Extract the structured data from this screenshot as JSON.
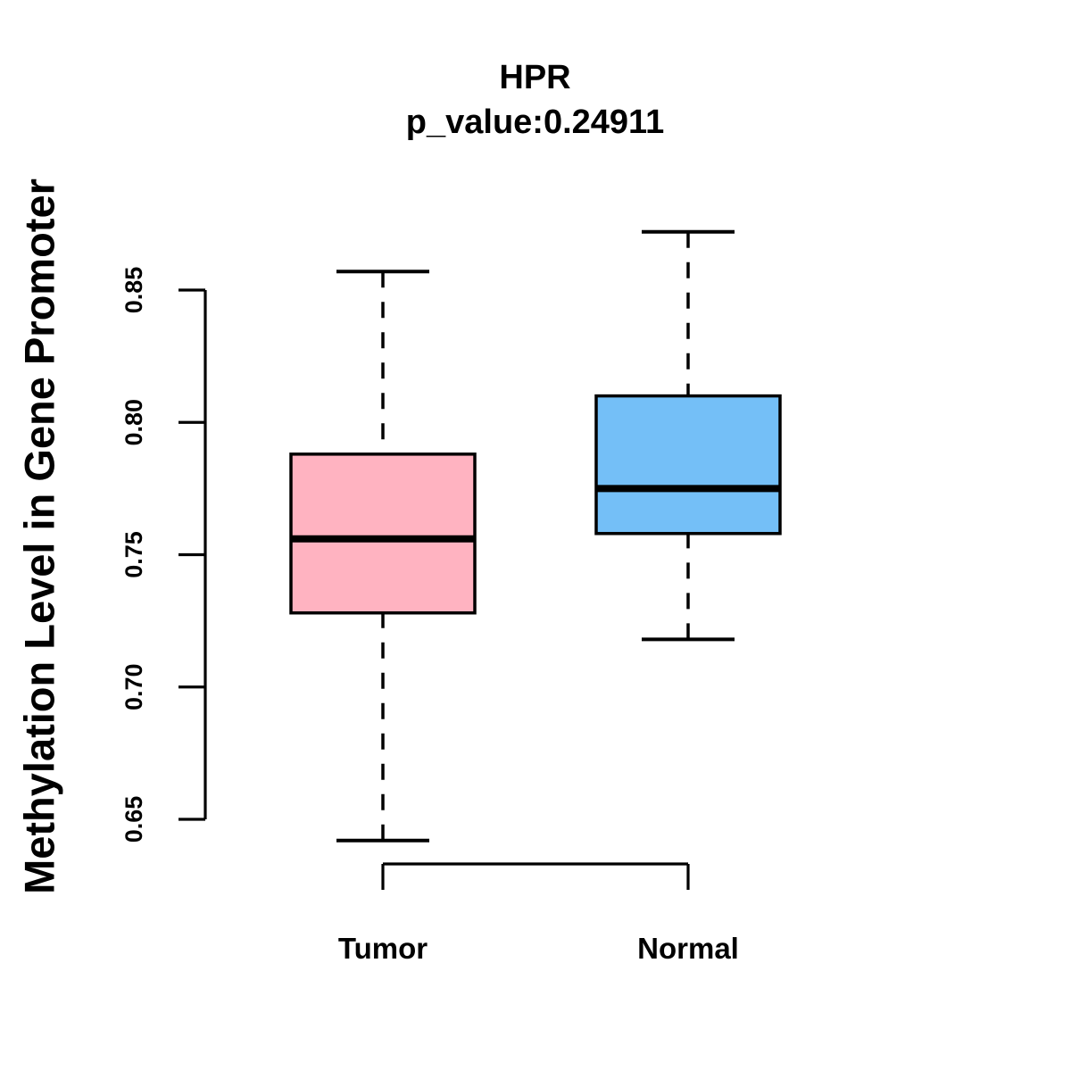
{
  "chart_data": {
    "type": "boxplot",
    "title": "HPR",
    "subtitle": "p_value:0.24911",
    "ylabel": "Methylation Level in Gene Promoter",
    "xlabel": "",
    "ylim": [
      0.65,
      0.85
    ],
    "yticks": [
      {
        "value": 0.65,
        "label": "0.65"
      },
      {
        "value": 0.7,
        "label": "0.70"
      },
      {
        "value": 0.75,
        "label": "0.75"
      },
      {
        "value": 0.8,
        "label": "0.80"
      },
      {
        "value": 0.85,
        "label": "0.85"
      }
    ],
    "categories": [
      "Tumor",
      "Normal"
    ],
    "series": [
      {
        "name": "Tumor",
        "fill_color": "#FFB3C1",
        "stats": {
          "lower_whisker": 0.642,
          "q1": 0.728,
          "median": 0.756,
          "q3": 0.788,
          "upper_whisker": 0.857
        }
      },
      {
        "name": "Normal",
        "fill_color": "#74BFF7",
        "stats": {
          "lower_whisker": 0.718,
          "q1": 0.758,
          "median": 0.775,
          "q3": 0.81,
          "upper_whisker": 0.872
        }
      }
    ],
    "line_color": "#000000",
    "background_color": "#FFFFFF",
    "grid": false,
    "legend": "none"
  }
}
